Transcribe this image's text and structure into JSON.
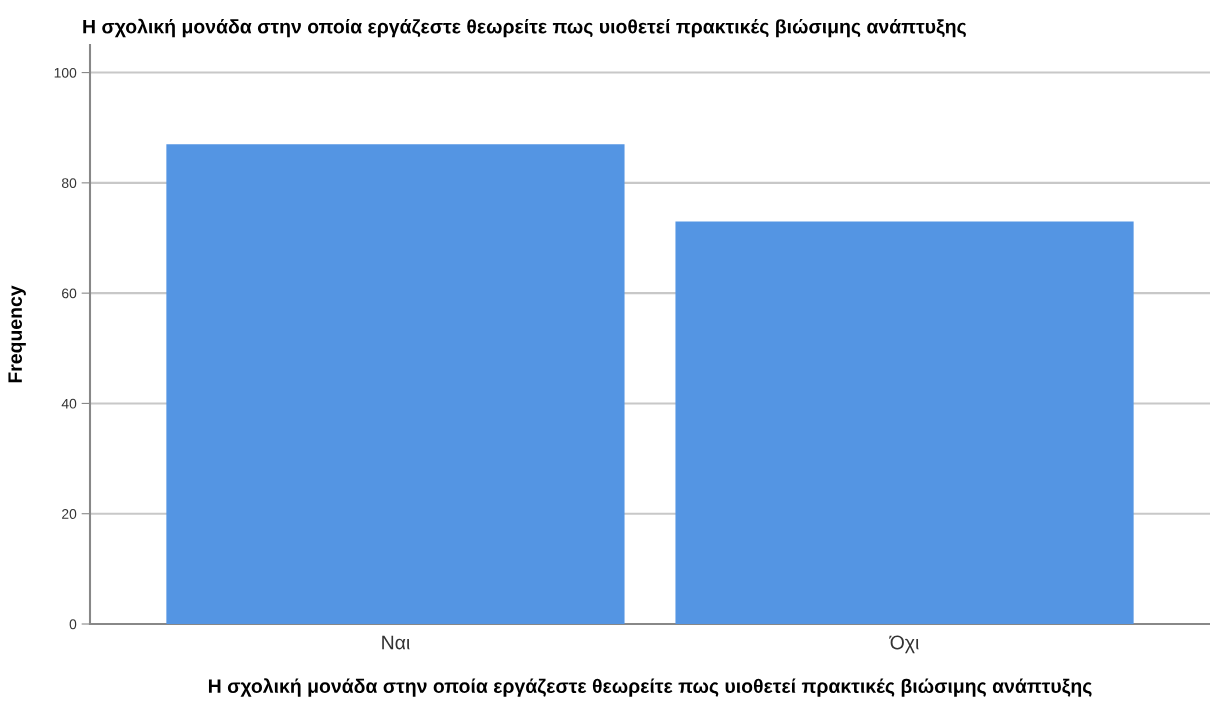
{
  "chart_data": {
    "type": "bar",
    "title": "Η σχολική μονάδα στην οποία εργάζεστε θεωρείτε πως υιοθετεί πρακτικές βιώσιμης ανάπτυξης",
    "xlabel": "Η σχολική μονάδα στην οποία εργάζεστε θεωρείτε πως υιοθετεί πρακτικές βιώσιμης ανάπτυξης",
    "ylabel": "Frequency",
    "categories": [
      "Ναι",
      "Όχι"
    ],
    "values": [
      87,
      73
    ],
    "color": "#5495e3",
    "ylim": [
      0,
      105
    ],
    "yticks": [
      0,
      20,
      40,
      60,
      80,
      100
    ],
    "grid": "y"
  }
}
